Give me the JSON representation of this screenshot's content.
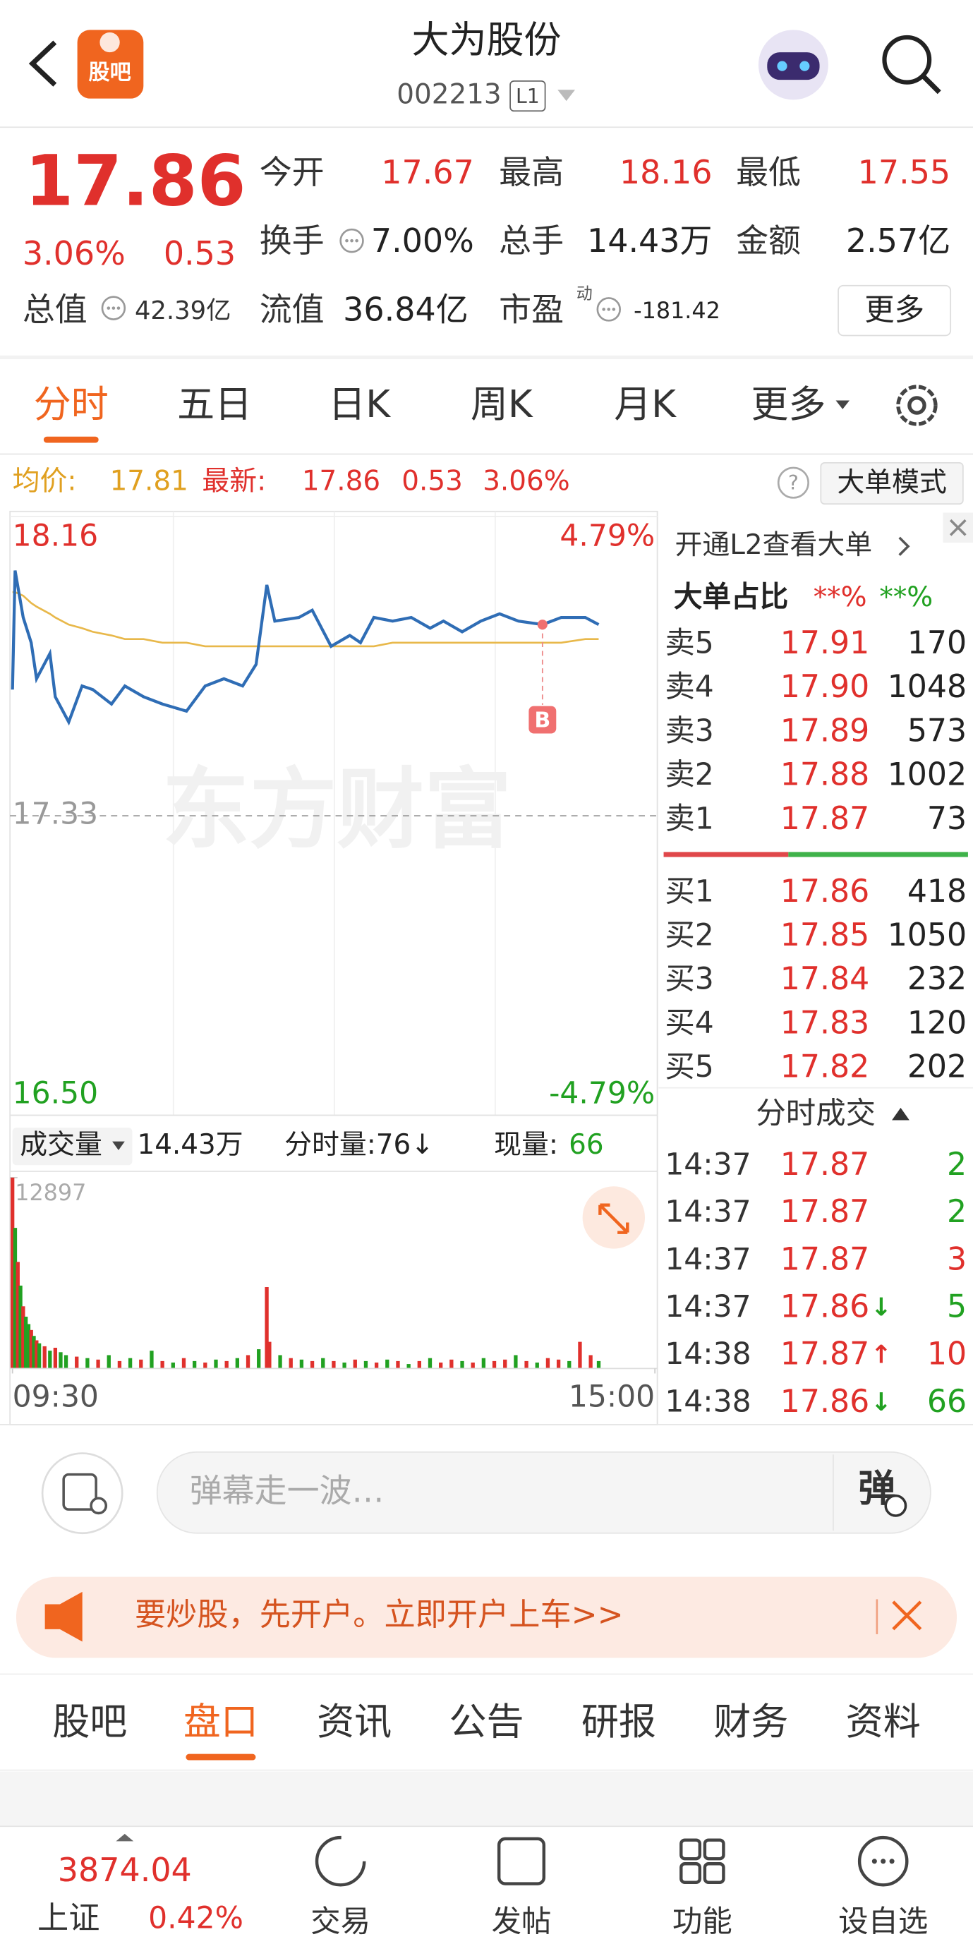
{
  "header": {
    "logo": "股吧",
    "title": "大为股份",
    "code": "002213",
    "level": "L1"
  },
  "quote": {
    "price": "17.86",
    "pct": "3.06%",
    "change": "0.53",
    "total_value_label": "总值",
    "total_value": "42.39亿",
    "fields": [
      {
        "label": "今开",
        "value": "17.67"
      },
      {
        "label": "最高",
        "value": "18.16"
      },
      {
        "label": "最低",
        "value": "17.55"
      },
      {
        "label": "换手",
        "value": "7.00%"
      },
      {
        "label": "总手",
        "value": "14.43万"
      },
      {
        "label": "金额",
        "value": "2.57亿"
      },
      {
        "label": "流值",
        "value": "36.84亿"
      },
      {
        "label": "市盈",
        "sup": "动",
        "value": "-181.42"
      }
    ],
    "more": "更多"
  },
  "tabs": [
    "分时",
    "五日",
    "日K",
    "周K",
    "月K",
    "更多"
  ],
  "legend": {
    "avg_label": "均价:",
    "avg": "17.81",
    "last_label": "最新:",
    "last": "17.86",
    "change": "0.53",
    "pct": "3.06%",
    "help": "?",
    "mode": "大单模式"
  },
  "chart_data": [
    {
      "type": "line",
      "watermark": "东方财富",
      "x": [
        0,
        1,
        4,
        7,
        9,
        14,
        16,
        21,
        26,
        30,
        37,
        42,
        49,
        56,
        65,
        72,
        79,
        86,
        91,
        95,
        98,
        107,
        112,
        119,
        126,
        130,
        135,
        142,
        149,
        156,
        161,
        168,
        175,
        182,
        189,
        198,
        205,
        214,
        219
      ],
      "series": [
        {
          "name": "最新",
          "color": "#2f6db5",
          "values": [
            17.68,
            18.01,
            17.88,
            17.81,
            17.71,
            17.78,
            17.66,
            17.59,
            17.69,
            17.68,
            17.64,
            17.69,
            17.66,
            17.64,
            17.62,
            17.69,
            17.71,
            17.69,
            17.75,
            17.97,
            17.87,
            17.88,
            17.9,
            17.8,
            17.83,
            17.81,
            17.88,
            17.87,
            17.88,
            17.85,
            17.87,
            17.84,
            17.87,
            17.89,
            17.87,
            17.86,
            17.88,
            17.88,
            17.86
          ]
        },
        {
          "name": "均价",
          "color": "#e8b84a",
          "values": [
            17.95,
            17.95,
            17.94,
            17.92,
            17.91,
            17.89,
            17.88,
            17.86,
            17.85,
            17.84,
            17.83,
            17.82,
            17.82,
            17.81,
            17.81,
            17.8,
            17.8,
            17.8,
            17.8,
            17.8,
            17.8,
            17.8,
            17.8,
            17.8,
            17.8,
            17.8,
            17.8,
            17.81,
            17.81,
            17.81,
            17.81,
            17.81,
            17.81,
            17.81,
            17.81,
            17.81,
            17.81,
            17.82,
            17.82
          ]
        }
      ],
      "annotations": [
        {
          "label": "B",
          "x": 198,
          "y": 17.86
        }
      ],
      "xlim": [
        0,
        240
      ],
      "ylim": [
        16.5,
        18.16
      ],
      "yticks": [
        {
          "value": 18.16,
          "label": "18.16"
        },
        17.33,
        {
          "value": 16.5,
          "label": "16.50"
        }
      ],
      "y2lim": [
        -4.79,
        4.79
      ],
      "y2ticks": [
        {
          "value": 4.79,
          "label": "4.79%"
        },
        {
          "value": -4.79,
          "label": "-4.79%"
        }
      ]
    },
    {
      "type": "bar",
      "label": "成交量",
      "total": "14.43万",
      "minute_volume": "分时量:76↓",
      "current_label": "现量:",
      "current": "66",
      "x": [
        0,
        1,
        2,
        3,
        4,
        5,
        6,
        7,
        8,
        9,
        10,
        12,
        14,
        16,
        18,
        20,
        24,
        28,
        32,
        36,
        40,
        44,
        48,
        52,
        56,
        60,
        64,
        68,
        72,
        76,
        80,
        84,
        88,
        92,
        95,
        96,
        100,
        104,
        108,
        112,
        116,
        120,
        124,
        128,
        132,
        136,
        140,
        144,
        148,
        152,
        156,
        160,
        164,
        168,
        172,
        176,
        180,
        184,
        188,
        192,
        196,
        200,
        204,
        208,
        212,
        216,
        219
      ],
      "values": [
        12897,
        9500,
        7200,
        5600,
        4200,
        3500,
        3000,
        2600,
        2200,
        1900,
        1700,
        1500,
        1200,
        1400,
        1100,
        900,
        800,
        700,
        600,
        900,
        500,
        700,
        600,
        1200,
        500,
        400,
        700,
        500,
        400,
        600,
        500,
        700,
        900,
        1300,
        5500,
        1800,
        900,
        700,
        600,
        500,
        700,
        500,
        400,
        600,
        500,
        400,
        600,
        500,
        300,
        500,
        700,
        400,
        600,
        500,
        400,
        700,
        500,
        600,
        900,
        500,
        400,
        700,
        600,
        500,
        1800,
        900,
        500
      ],
      "colors": [
        "#e0302c",
        "#21a121",
        "#e0302c",
        "#21a121",
        "#e0302c",
        "#21a121",
        "#21a121",
        "#e0302c",
        "#21a121",
        "#e0302c",
        "#21a121",
        "#e0302c",
        "#21a121",
        "#e0302c",
        "#21a121",
        "#21a121",
        "#e0302c",
        "#21a121",
        "#e0302c",
        "#21a121",
        "#e0302c",
        "#21a121",
        "#e0302c",
        "#21a121",
        "#e0302c",
        "#21a121",
        "#e0302c",
        "#21a121",
        "#e0302c",
        "#21a121",
        "#e0302c",
        "#21a121",
        "#e0302c",
        "#21a121",
        "#e0302c",
        "#e0302c",
        "#21a121",
        "#e0302c",
        "#21a121",
        "#e0302c",
        "#21a121",
        "#e0302c",
        "#21a121",
        "#e0302c",
        "#21a121",
        "#e0302c",
        "#21a121",
        "#e0302c",
        "#21a121",
        "#e0302c",
        "#21a121",
        "#e0302c",
        "#e0302c",
        "#21a121",
        "#e0302c",
        "#21a121",
        "#e0302c",
        "#e0302c",
        "#21a121",
        "#e0302c",
        "#21a121",
        "#e0302c",
        "#e0302c",
        "#21a121",
        "#e0302c",
        "#e0302c",
        "#21a121"
      ],
      "xlim": [
        0,
        240
      ],
      "xticks": [
        {
          "value": 0,
          "label": "09:30"
        },
        {
          "value": 240,
          "label": "15:00"
        }
      ],
      "ylim": [
        0,
        12897
      ],
      "yticks": [
        12897
      ]
    }
  ],
  "order_book": {
    "banner": "开通L2查看大单",
    "ratio_label": "大单占比",
    "ratio_up": "**%",
    "ratio_down": "**%",
    "asks": [
      {
        "label": "卖5",
        "price": "17.91",
        "volume": "170"
      },
      {
        "label": "卖4",
        "price": "17.90",
        "volume": "1048"
      },
      {
        "label": "卖3",
        "price": "17.89",
        "volume": "573"
      },
      {
        "label": "卖2",
        "price": "17.88",
        "volume": "1002"
      },
      {
        "label": "卖1",
        "price": "17.87",
        "volume": "73"
      }
    ],
    "bids": [
      {
        "label": "买1",
        "price": "17.86",
        "volume": "418"
      },
      {
        "label": "买2",
        "price": "17.85",
        "volume": "1050"
      },
      {
        "label": "买3",
        "price": "17.84",
        "volume": "232"
      },
      {
        "label": "买4",
        "price": "17.83",
        "volume": "120"
      },
      {
        "label": "买5",
        "price": "17.82",
        "volume": "202"
      }
    ]
  },
  "trades": {
    "title": "分时成交",
    "rows": [
      {
        "time": "14:37",
        "price": "17.87",
        "volume": "2",
        "color": "#21a121"
      },
      {
        "time": "14:37",
        "price": "17.87",
        "volume": "2",
        "color": "#21a121"
      },
      {
        "time": "14:37",
        "price": "17.87",
        "volume": "3",
        "color": "#e0302c"
      },
      {
        "time": "14:37",
        "price": "17.86",
        "arrow": "↓",
        "volume": "5",
        "color": "#21a121"
      },
      {
        "time": "14:38",
        "price": "17.87",
        "arrow": "↑",
        "volume": "10",
        "color": "#e0302c"
      },
      {
        "time": "14:38",
        "price": "17.86",
        "arrow": "↓",
        "volume": "66",
        "color": "#21a121"
      }
    ]
  },
  "comment": {
    "placeholder": "弹幕走一波…",
    "button": "弹"
  },
  "promo": {
    "text": "要炒股，先开户。立即开户上车>>"
  },
  "subtabs": [
    "股吧",
    "盘口",
    "资讯",
    "公告",
    "研报",
    "财务",
    "资料"
  ],
  "bottom": {
    "index_value": "3874.04",
    "index_name": "上证",
    "index_pct": "0.42%",
    "items": [
      "交易",
      "发帖",
      "功能",
      "设自选"
    ]
  }
}
